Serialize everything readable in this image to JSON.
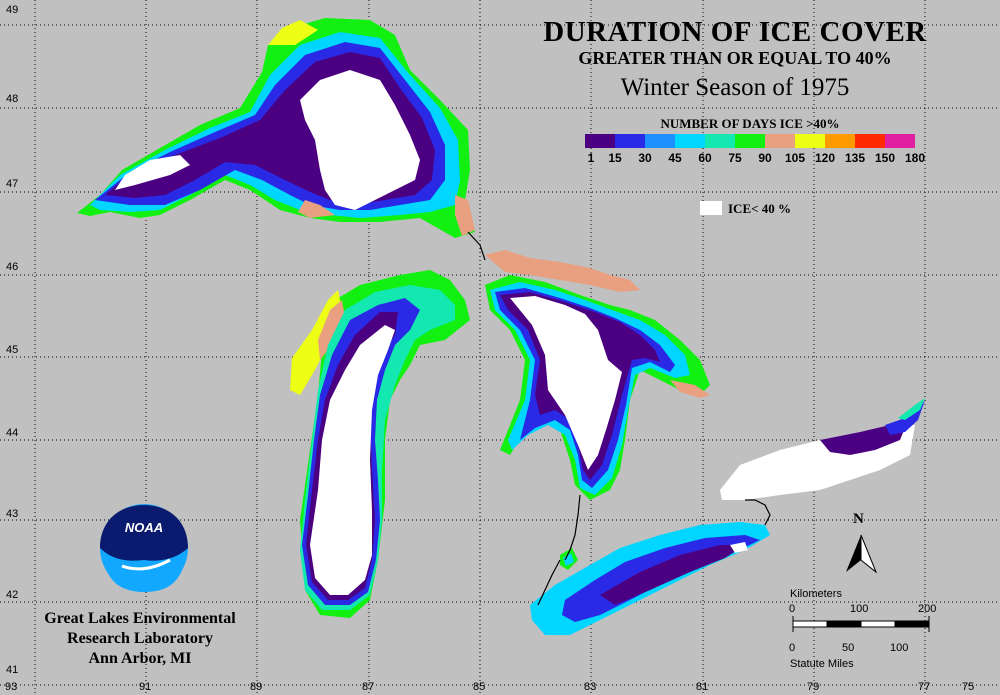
{
  "title": {
    "line1": "DURATION OF ICE COVER",
    "line2": "GREATER THAN OR EQUAL TO 40%",
    "line3": "Winter Season of 1975"
  },
  "legend": {
    "title": "NUMBER OF DAYS ICE >40%",
    "labels": [
      "1",
      "15",
      "30",
      "45",
      "60",
      "75",
      "90",
      "105",
      "120",
      "135",
      "150",
      "180"
    ],
    "colors": [
      "#4b0082",
      "#2a2ae6",
      "#1e90ff",
      "#00d6ff",
      "#12e8b0",
      "#12f012",
      "#e8a080",
      "#ecff14",
      "#ff9a00",
      "#ff2a00",
      "#e020a0"
    ],
    "ice_label": "ICE< 40 %",
    "ice_color": "#ffffff"
  },
  "axes": {
    "longitude_labels": [
      "93",
      "91",
      "89",
      "87",
      "85",
      "83",
      "81",
      "79",
      "77",
      "75"
    ],
    "latitude_labels": [
      "49",
      "48",
      "47",
      "46",
      "45",
      "44",
      "43",
      "42",
      "41"
    ]
  },
  "north_arrow": {
    "label": "N"
  },
  "scale_bar": {
    "km_title": "Kilometers",
    "km_ticks": [
      "0",
      "100",
      "200"
    ],
    "mi_ticks": [
      "0",
      "50",
      "100"
    ],
    "mi_title": "Statute Miles"
  },
  "logo": {
    "text": "NOAA"
  },
  "organization": {
    "line1": "Great Lakes Environmental",
    "line2": "Research Laboratory",
    "line3": "Ann Arbor, MI"
  }
}
